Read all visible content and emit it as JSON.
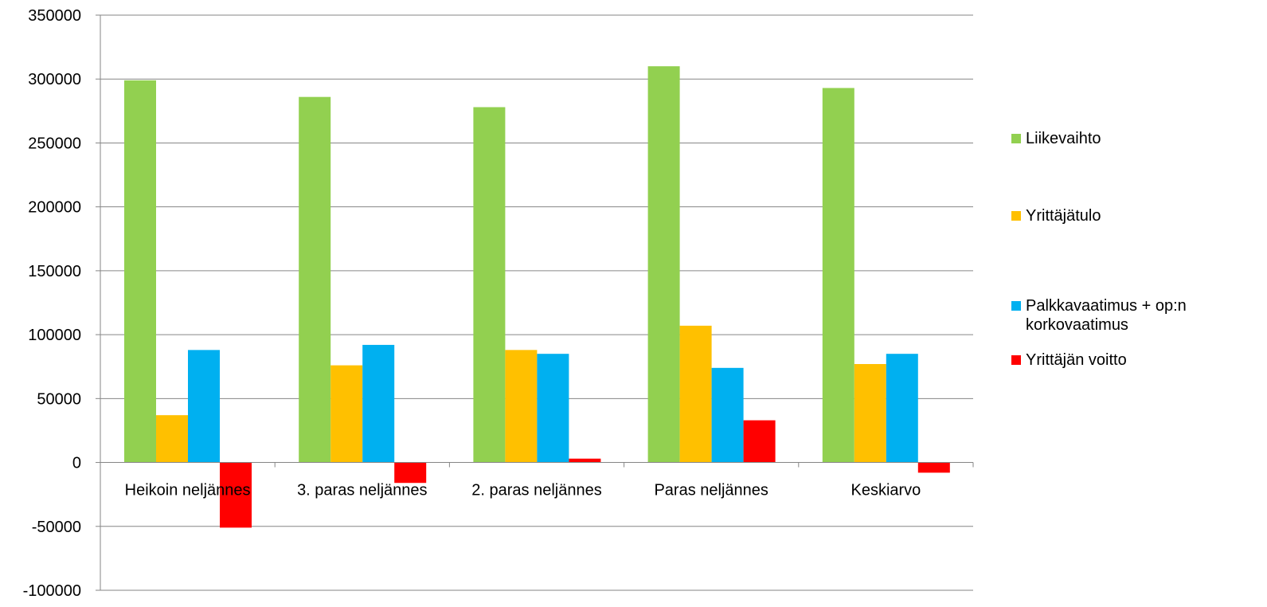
{
  "chart_data": {
    "type": "bar",
    "categories": [
      "Heikoin neljännes",
      "3. paras neljännes",
      "2. paras neljännes",
      "Paras neljännes",
      "Keskiarvo"
    ],
    "series": [
      {
        "name": "Liikevaihto",
        "color": "#92D050",
        "values": [
          299000,
          286000,
          278000,
          310000,
          293000
        ]
      },
      {
        "name": "Yrittäjätulo",
        "color": "#FFC000",
        "values": [
          37000,
          76000,
          88000,
          107000,
          77000
        ]
      },
      {
        "name": "Palkkavaatimus + op:n korkovaatimus",
        "color": "#00B0F0",
        "values": [
          88000,
          92000,
          85000,
          74000,
          85000
        ]
      },
      {
        "name": "Yrittäjän voitto",
        "color": "#FF0000",
        "values": [
          -51000,
          -16000,
          3000,
          33000,
          -8000
        ]
      }
    ],
    "ylim": [
      -100000,
      350000
    ],
    "yticks": [
      "-100000",
      "-50000",
      "0",
      "50000",
      "100000",
      "150000",
      "200000",
      "250000",
      "300000",
      "350000"
    ],
    "ytick_values": [
      -100000,
      -50000,
      0,
      50000,
      100000,
      150000,
      200000,
      250000,
      300000,
      350000
    ],
    "grid": true,
    "legend_position": "right",
    "title": "",
    "xlabel": "",
    "ylabel": ""
  }
}
